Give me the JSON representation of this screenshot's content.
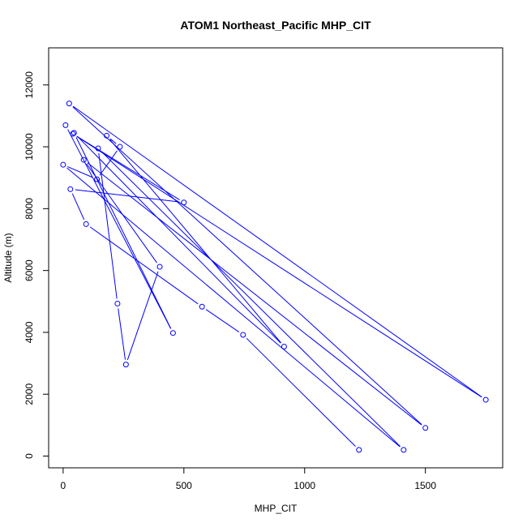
{
  "chart_data": {
    "type": "line",
    "title": "ATOM1 Northeast_Pacific MHP_CIT",
    "xlabel": "MHP_CIT",
    "ylabel": "Altitude (m)",
    "xlim": [
      -60,
      1820
    ],
    "ylim": [
      -380,
      13200
    ],
    "xticks": [
      0,
      500,
      1000,
      1500
    ],
    "yticks": [
      0,
      2000,
      4000,
      6000,
      8000,
      10000,
      12000
    ],
    "series": [
      {
        "color": "#0000ff",
        "marker": "open-circle",
        "points": [
          {
            "x": 1225,
            "y": 200
          },
          {
            "x": 745,
            "y": 3920
          },
          {
            "x": 575,
            "y": 4830
          },
          {
            "x": 95,
            "y": 7500
          },
          {
            "x": 30,
            "y": 8630
          },
          {
            "x": 500,
            "y": 8200
          },
          {
            "x": 40,
            "y": 10420
          },
          {
            "x": 1750,
            "y": 1820
          },
          {
            "x": 25,
            "y": 11400
          },
          {
            "x": 1500,
            "y": 910
          },
          {
            "x": 85,
            "y": 9580
          },
          {
            "x": 400,
            "y": 6120
          },
          {
            "x": 260,
            "y": 2960
          },
          {
            "x": 225,
            "y": 4930
          },
          {
            "x": 145,
            "y": 9950
          },
          {
            "x": 1410,
            "y": 200
          },
          {
            "x": 0,
            "y": 9420
          },
          {
            "x": 140,
            "y": 8950
          },
          {
            "x": 235,
            "y": 10000
          },
          {
            "x": 180,
            "y": 10360
          },
          {
            "x": 915,
            "y": 3540
          },
          {
            "x": 45,
            "y": 10450
          },
          {
            "x": 455,
            "y": 3980
          },
          {
            "x": 10,
            "y": 10700
          }
        ]
      }
    ]
  }
}
